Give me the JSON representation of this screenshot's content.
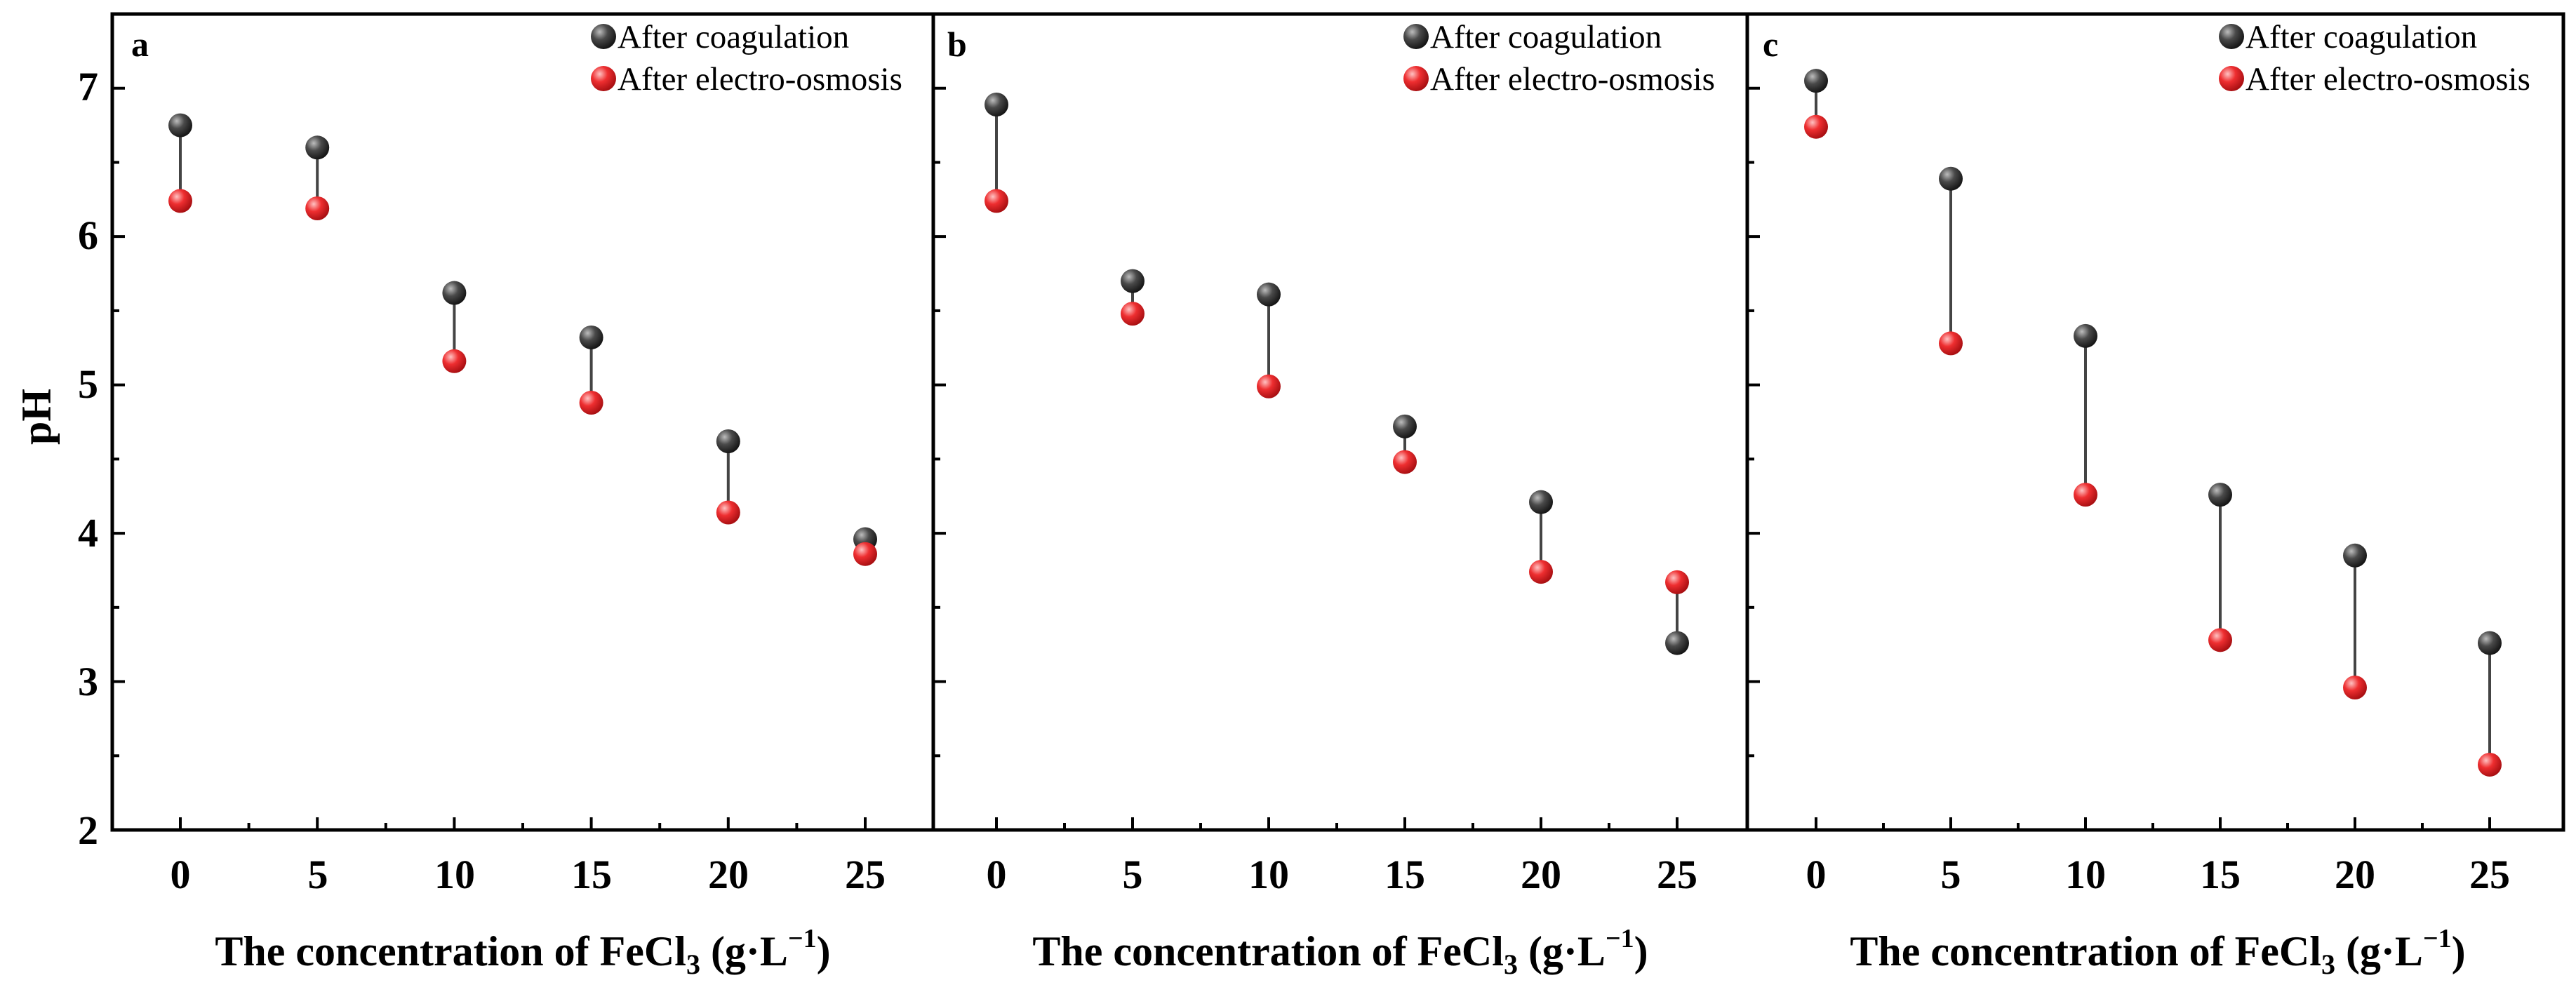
{
  "colors": {
    "coagulation": "#3d3d3d",
    "electro_osmosis": "#e8282b",
    "connector": "#444444",
    "axis": "#000000"
  },
  "legend": {
    "series_a": "After coagulation",
    "series_b": "After electro-osmosis"
  },
  "y_axis": {
    "label": "pH",
    "ticks": [
      "2",
      "3",
      "4",
      "5",
      "6",
      "7"
    ]
  },
  "x_axis": {
    "label_main": "The concentration of FeCl",
    "label_sub": "3",
    "label_unit_open": " (g·L",
    "label_sup": "−1",
    "label_close": ")"
  },
  "chart_data": [
    {
      "type": "scatter",
      "panel": "a",
      "categories": [
        "0",
        "5",
        "10",
        "15",
        "20",
        "25"
      ],
      "ylim": [
        2,
        7.5
      ],
      "series": [
        {
          "name": "After coagulation",
          "values": [
            6.75,
            6.6,
            5.62,
            5.32,
            4.62,
            3.96
          ]
        },
        {
          "name": "After electro-osmosis",
          "values": [
            6.24,
            6.19,
            5.16,
            4.88,
            4.14,
            3.86
          ]
        }
      ]
    },
    {
      "type": "scatter",
      "panel": "b",
      "categories": [
        "0",
        "5",
        "10",
        "15",
        "20",
        "25"
      ],
      "ylim": [
        2,
        7.5
      ],
      "series": [
        {
          "name": "After coagulation",
          "values": [
            6.89,
            5.7,
            5.61,
            4.72,
            4.21,
            3.26
          ]
        },
        {
          "name": "After electro-osmosis",
          "values": [
            6.24,
            5.48,
            4.99,
            4.48,
            3.74,
            3.67
          ]
        }
      ]
    },
    {
      "type": "scatter",
      "panel": "c",
      "categories": [
        "0",
        "5",
        "10",
        "15",
        "20",
        "25"
      ],
      "ylim": [
        2,
        7.5
      ],
      "series": [
        {
          "name": "After coagulation",
          "values": [
            7.05,
            6.39,
            5.33,
            4.26,
            3.85,
            3.26
          ]
        },
        {
          "name": "After electro-osmosis",
          "values": [
            6.74,
            5.28,
            4.26,
            3.28,
            2.96,
            2.44
          ]
        }
      ]
    }
  ]
}
